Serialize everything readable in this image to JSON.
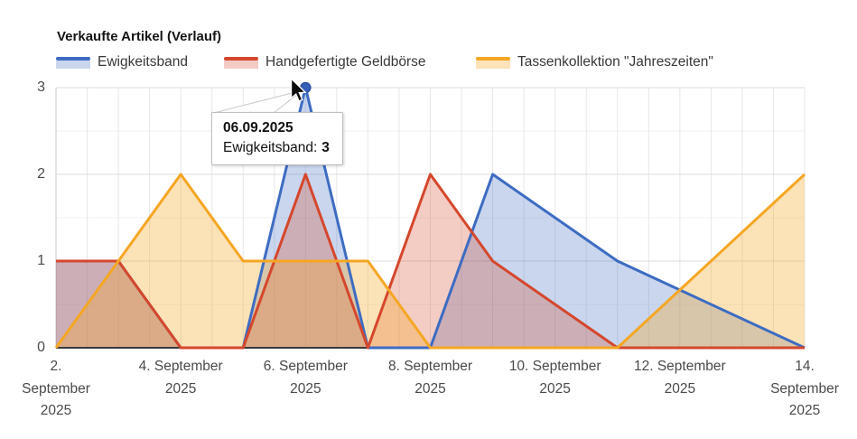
{
  "chart": {
    "title": "Verkaufte Artikel (Verlauf)",
    "legend": [
      {
        "label": "Ewigkeitsband",
        "color": "#3d6cc2",
        "fill": "#c9d6ee"
      },
      {
        "label": "Handgefertigte Geldbörse",
        "color": "#d5472c",
        "fill": "#f3cbc4"
      },
      {
        "label": "Tassenkollektion \"Jahreszeiten\"",
        "color": "#f5a623",
        "fill": "#fce2b9"
      }
    ],
    "tooltip": {
      "date": "06.09.2025",
      "label": "Ewigkeitsband:",
      "value": "3"
    }
  },
  "chart_data": {
    "type": "area",
    "title": "Verkaufte Artikel (Verlauf)",
    "x_axis": {
      "start": "02.09.2025",
      "end": "14.09.2025",
      "unit": "day"
    },
    "x_tick_labels": [
      [
        "2.",
        "September",
        "2025"
      ],
      [
        "4. September",
        "2025"
      ],
      [
        "6. September",
        "2025"
      ],
      [
        "8. September",
        "2025"
      ],
      [
        "10. September",
        "2025"
      ],
      [
        "12. September",
        "2025"
      ],
      [
        "14.",
        "September",
        "2025"
      ]
    ],
    "y_ticks": [
      0,
      1,
      2,
      3
    ],
    "ylim": [
      0,
      3
    ],
    "grid": "on",
    "legend_position": "top",
    "series": [
      {
        "name": "Ewigkeitsband",
        "color": "#3d6cc2",
        "fill_opacity": 0.28,
        "points": [
          [
            "02.09.2025",
            1
          ],
          [
            "03.09.2025",
            1
          ],
          [
            "04.09.2025",
            0
          ],
          [
            "05.09.2025",
            0
          ],
          [
            "06.09.2025",
            3
          ],
          [
            "07.09.2025",
            0
          ],
          [
            "08.09.2025",
            0
          ],
          [
            "09.09.2025",
            2
          ],
          [
            "11.09.2025",
            1
          ],
          [
            "14.09.2025",
            0
          ]
        ]
      },
      {
        "name": "Handgefertigte Geldbörse",
        "color": "#d5472c",
        "fill_opacity": 0.28,
        "points": [
          [
            "02.09.2025",
            1
          ],
          [
            "03.09.2025",
            1
          ],
          [
            "04.09.2025",
            0
          ],
          [
            "05.09.2025",
            0
          ],
          [
            "06.09.2025",
            2
          ],
          [
            "07.09.2025",
            0
          ],
          [
            "08.09.2025",
            2
          ],
          [
            "09.09.2025",
            1
          ],
          [
            "11.09.2025",
            0
          ],
          [
            "14.09.2025",
            0
          ]
        ]
      },
      {
        "name": "Tassenkollektion \"Jahreszeiten\"",
        "color": "#f5a623",
        "fill_opacity": 0.33,
        "points": [
          [
            "02.09.2025",
            0
          ],
          [
            "04.09.2025",
            2
          ],
          [
            "05.09.2025",
            1
          ],
          [
            "07.09.2025",
            1
          ],
          [
            "08.09.2025",
            0
          ],
          [
            "11.09.2025",
            0
          ],
          [
            "14.09.2025",
            2
          ]
        ]
      }
    ],
    "highlighted_point": {
      "series": "Ewigkeitsband",
      "date": "06.09.2025",
      "value": 3,
      "marker_color": "#3560b8",
      "marker_stroke": "#2a4f9e"
    }
  }
}
